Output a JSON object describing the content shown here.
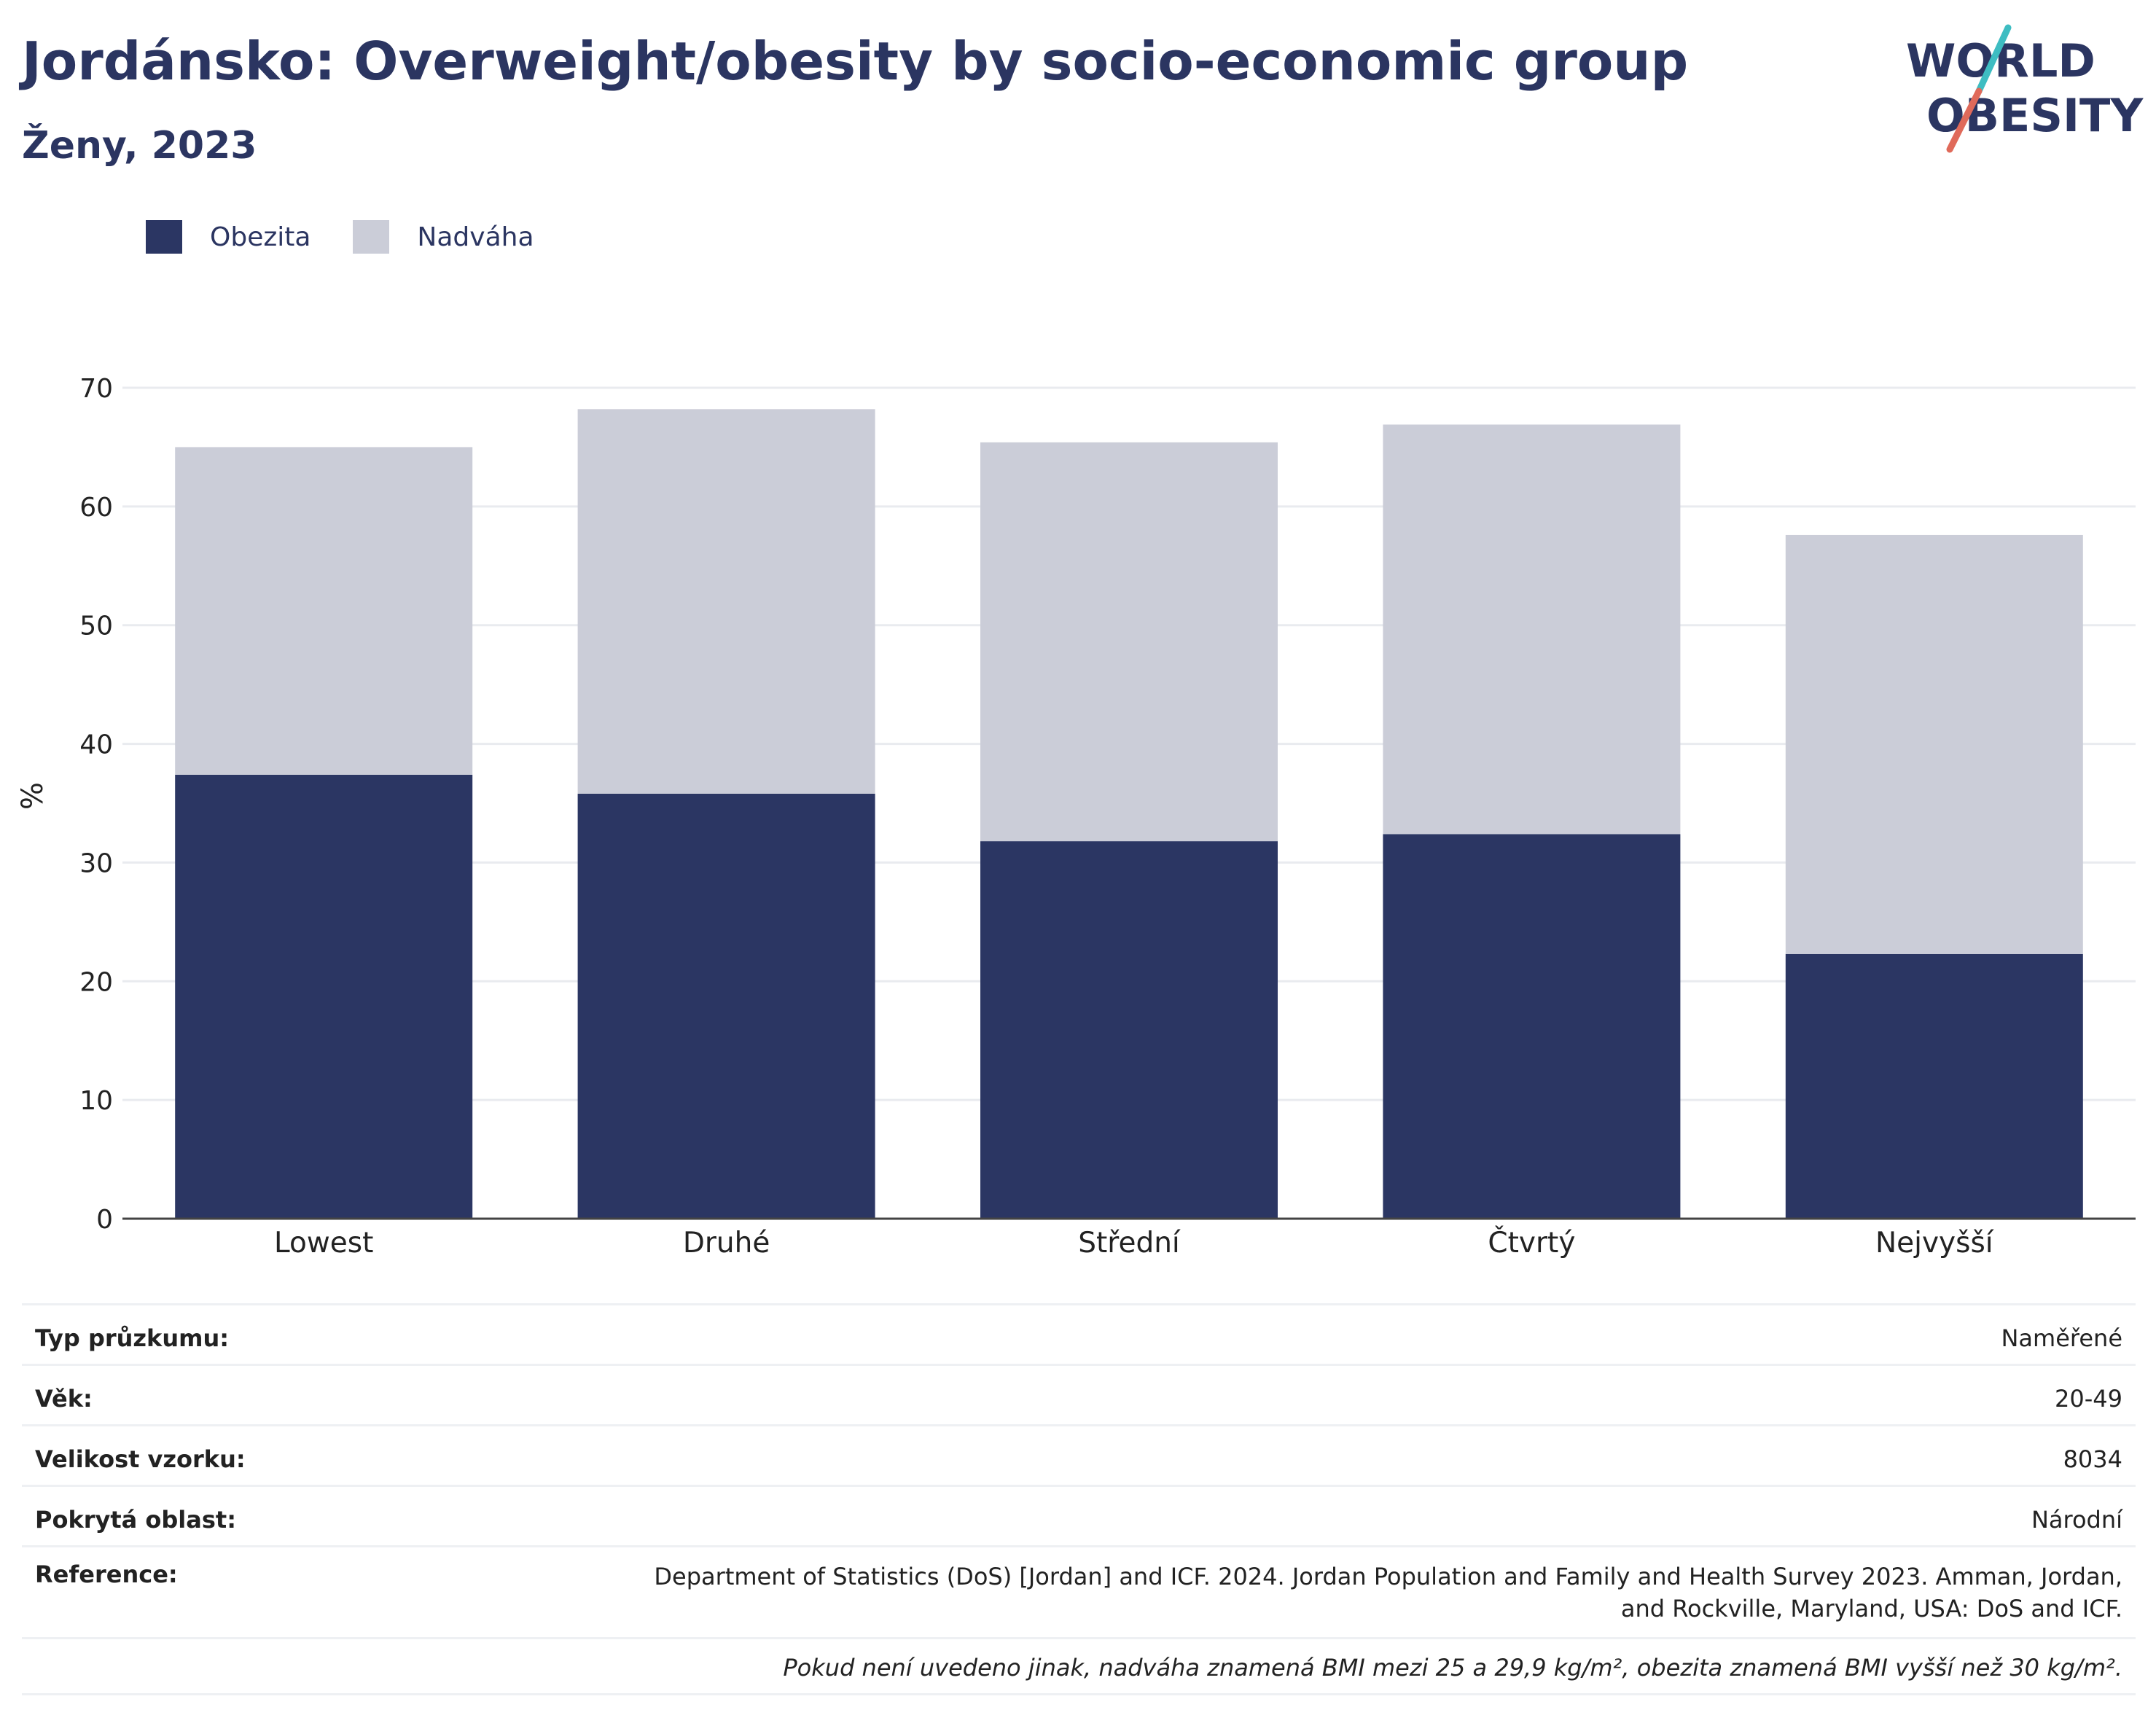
{
  "header": {
    "title": "Jordánsko: Overweight/obesity by socio-economic group",
    "subtitle": "Ženy, 2023"
  },
  "logo": {
    "line1": "WORLD",
    "line2": "OBESITY",
    "accent_colors": [
      "#3ebdc2",
      "#e06a5a"
    ]
  },
  "legend": [
    {
      "label": "Obezita",
      "color": "#2b3663"
    },
    {
      "label": "Nadváha",
      "color": "#cbcdd8"
    }
  ],
  "chart_data": {
    "type": "bar",
    "stacked": true,
    "categories": [
      "Lowest",
      "Druhé",
      "Střední",
      "Čtvrtý",
      "Nejvyšší"
    ],
    "series": [
      {
        "name": "Obezita",
        "values": [
          37.4,
          35.8,
          31.8,
          32.4,
          22.3
        ],
        "color": "#2b3663"
      },
      {
        "name": "Nadváha",
        "values": [
          27.6,
          32.4,
          33.6,
          34.5,
          35.3
        ],
        "color": "#cbcdd8"
      }
    ],
    "ylabel": "%",
    "xlabel": "",
    "ylim": [
      0,
      70
    ],
    "yticks": [
      0,
      10,
      20,
      30,
      40,
      50,
      60,
      70
    ],
    "grid": true,
    "legend_position": "top-left"
  },
  "info_table": [
    {
      "label": "Typ průzkumu:",
      "value": "Naměřené"
    },
    {
      "label": "Věk:",
      "value": "20-49"
    },
    {
      "label": "Velikost vzorku:",
      "value": "8034"
    },
    {
      "label": "Pokrytá oblast:",
      "value": "Národní"
    },
    {
      "label": "Reference:",
      "value": "Department of Statistics (DoS) [Jordan] and ICF. 2024. Jordan Population and Family and Health Survey 2023. Amman, Jordan, and Rockville, Maryland, USA: DoS and ICF."
    }
  ],
  "footnote": "Pokud není uvedeno jinak, nadváha znamená BMI mezi 25 a 29,9 kg/m², obezita znamená BMI vyšší než 30 kg/m²."
}
